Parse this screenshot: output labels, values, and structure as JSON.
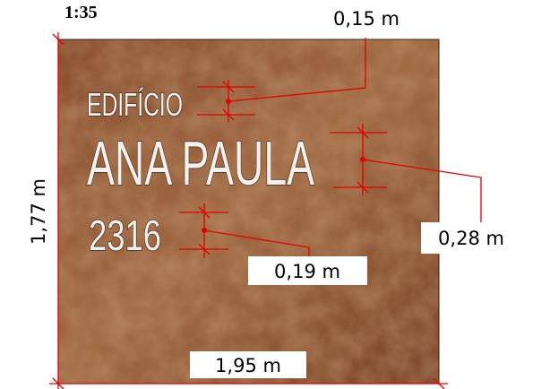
{
  "scale": "1:35",
  "sign": {
    "line1": "EDIFÍCIO",
    "line2": "ANA PAULA",
    "line3": "2316"
  },
  "dimensions": {
    "width": "1,95 m",
    "height": "1,77 m",
    "line1_height": "0,15 m",
    "line2_height": "0,28 m",
    "line3_height": "0,19 m"
  }
}
